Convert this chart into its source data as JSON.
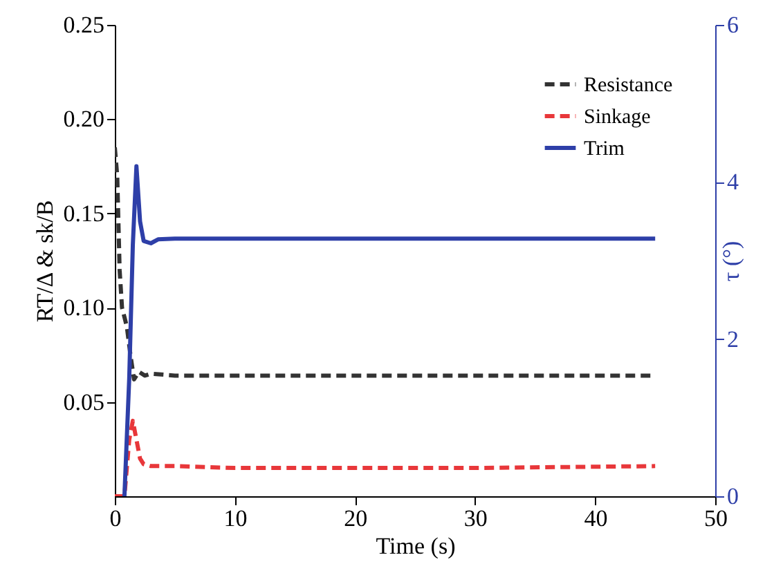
{
  "chart_data": {
    "type": "line",
    "xlabel": "Time (s)",
    "ylabel": "RT/Δ & sk/B",
    "y2label": "τ (°)",
    "xlim": [
      0,
      50
    ],
    "xticks": [
      0,
      10,
      20,
      30,
      40,
      50
    ],
    "ylim": [
      0,
      0.25
    ],
    "yticks": [
      0.05,
      {
        "value": 0.1,
        "label": "0.10"
      },
      0.15,
      {
        "value": 0.2,
        "label": "0.20"
      },
      0.25
    ],
    "y2lim": [
      0,
      6
    ],
    "y2ticks": [
      0,
      2,
      4,
      6
    ],
    "grid": false,
    "legend": "top right",
    "marker": "none",
    "series": [
      {
        "name": "Resistance",
        "color": "#333333",
        "line_style": "dashed",
        "x": [
          0,
          0.2,
          0.4,
          0.6,
          0.8,
          1.0,
          1.3,
          1.6,
          2.0,
          2.5,
          3,
          5,
          10,
          20,
          30,
          45
        ],
        "values": [
          0.185,
          0.17,
          0.12,
          0.1,
          0.095,
          0.09,
          0.075,
          0.062,
          0.066,
          0.064,
          0.065,
          0.064,
          0.064,
          0.064,
          0.064,
          0.064
        ]
      },
      {
        "name": "Sinkage",
        "color": "#e8373a",
        "line_style": "dashed",
        "x": [
          0,
          0.8,
          1.2,
          1.5,
          1.8,
          2.1,
          2.4,
          3,
          5,
          10,
          20,
          30,
          45
        ],
        "values": [
          0,
          0,
          0.03,
          0.04,
          0.03,
          0.02,
          0.017,
          0.016,
          0.016,
          0.015,
          0.015,
          0.015,
          0.016
        ]
      },
      {
        "name": "Trim",
        "color": "#2e3fa8",
        "line_style": "solid",
        "axis": "y2",
        "x": [
          0.8,
          1.2,
          1.5,
          1.8,
          2.1,
          2.4,
          3,
          3.6,
          5,
          45
        ],
        "values": [
          0,
          1.5,
          3.2,
          4.2,
          3.5,
          3.25,
          3.22,
          3.27,
          3.28,
          3.28
        ]
      }
    ]
  }
}
